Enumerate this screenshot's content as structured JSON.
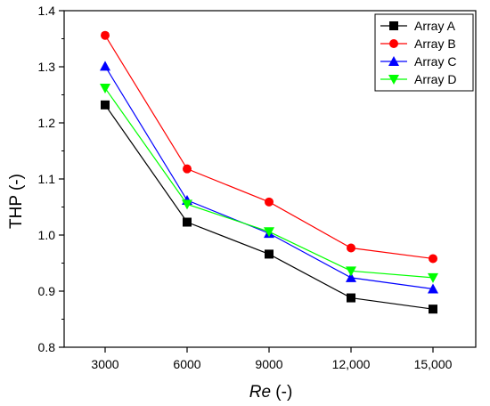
{
  "chart_data": {
    "type": "line",
    "x_categories": [
      "3000",
      "6000",
      "9000",
      "12,000",
      "15,000"
    ],
    "xlabel_italic": "Re",
    "xlabel_suffix": " (-)",
    "ylabel": "THP (-)",
    "ylim": [
      0.8,
      1.4
    ],
    "yticks": [
      "0.8",
      "0.9",
      "1.0",
      "1.1",
      "1.2",
      "1.3",
      "1.4"
    ],
    "legend_position": "top-right",
    "grid": false,
    "series": [
      {
        "name": "Array A",
        "color": "#000000",
        "marker": "square",
        "values": [
          1.232,
          1.023,
          0.966,
          0.888,
          0.868
        ]
      },
      {
        "name": "Array B",
        "color": "#ff0000",
        "marker": "circle",
        "values": [
          1.356,
          1.118,
          1.059,
          0.977,
          0.958
        ]
      },
      {
        "name": "Array C",
        "color": "#0000ff",
        "marker": "triangle-up",
        "values": [
          1.301,
          1.062,
          1.003,
          0.924,
          0.904
        ]
      },
      {
        "name": "Array D",
        "color": "#00ff00",
        "marker": "triangle-down",
        "values": [
          1.262,
          1.055,
          1.006,
          0.936,
          0.924
        ]
      }
    ]
  }
}
